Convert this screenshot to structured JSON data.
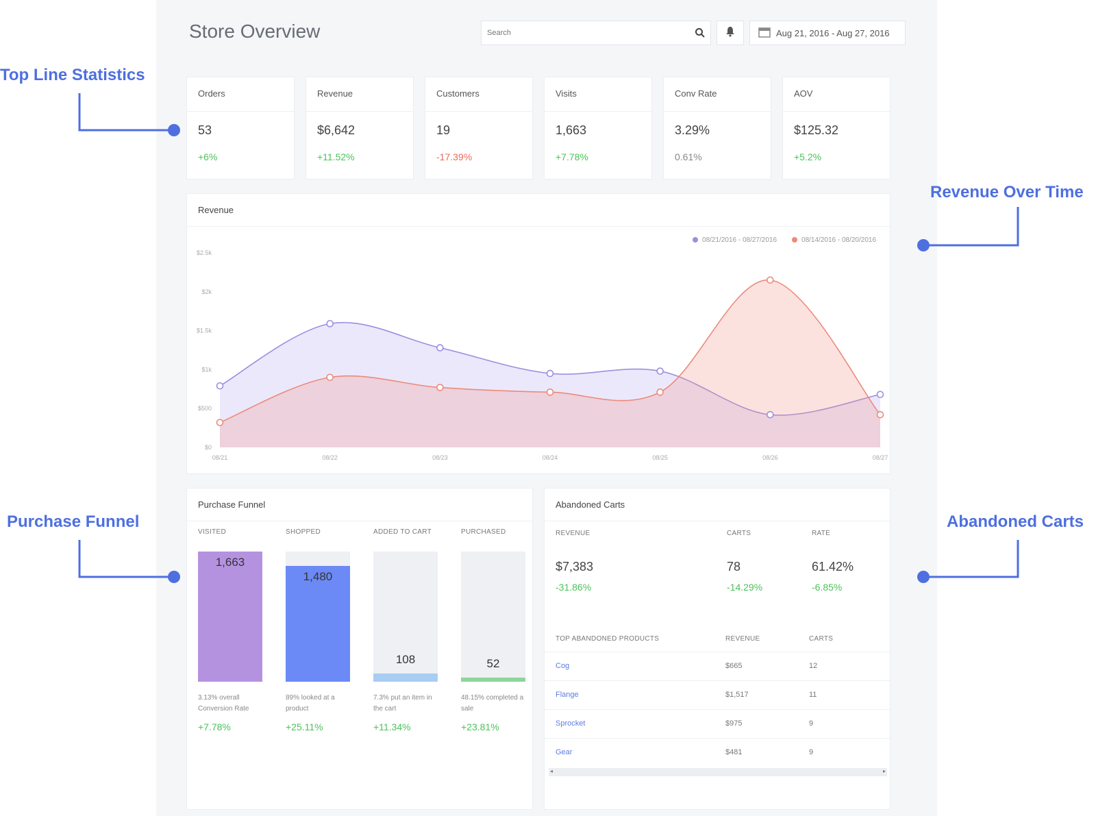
{
  "header": {
    "title": "Store Overview",
    "search_placeholder": "Search",
    "date_range": "Aug 21, 2016 - Aug 27, 2016"
  },
  "stats": [
    {
      "label": "Orders",
      "value": "53",
      "change": "+6%",
      "trend": "pos"
    },
    {
      "label": "Revenue",
      "value": "$6,642",
      "change": "+11.52%",
      "trend": "pos"
    },
    {
      "label": "Customers",
      "value": "19",
      "change": "-17.39%",
      "trend": "neg"
    },
    {
      "label": "Visits",
      "value": "1,663",
      "change": "+7.78%",
      "trend": "pos"
    },
    {
      "label": "Conv Rate",
      "value": "3.29%",
      "change": "0.61%",
      "trend": "neu"
    },
    {
      "label": "AOV",
      "value": "$125.32",
      "change": "+5.2%",
      "trend": "pos"
    }
  ],
  "revenue_panel": {
    "title": "Revenue",
    "legend": [
      "08/21/2016 - 08/27/2016",
      "08/14/2016 - 08/20/2016"
    ]
  },
  "chart_data": {
    "type": "area",
    "title": "Revenue",
    "x": [
      "08/21",
      "08/22",
      "08/23",
      "08/24",
      "08/25",
      "08/26",
      "08/27"
    ],
    "y_ticks": [
      "$0",
      "$500",
      "$1k",
      "$1.5k",
      "$2k",
      "$2.5k"
    ],
    "ylim": [
      0,
      2500
    ],
    "series": [
      {
        "name": "08/21/2016 - 08/27/2016",
        "color": "#9b8fe0",
        "values": [
          790,
          1590,
          1280,
          950,
          980,
          420,
          680
        ]
      },
      {
        "name": "08/14/2016 - 08/20/2016",
        "color": "#ec8a7a",
        "values": [
          320,
          900,
          770,
          710,
          710,
          2150,
          420
        ]
      }
    ],
    "grid": false,
    "legend_position": "top-right"
  },
  "funnel": {
    "title": "Purchase Funnel",
    "stages": [
      {
        "header": "VISITED",
        "count": "1,663",
        "fill": 1.0,
        "color": "#b592e0",
        "desc": "3.13% overall Conversion Rate",
        "change": "+7.78%"
      },
      {
        "header": "SHOPPED",
        "count": "1,480",
        "fill": 0.89,
        "color": "#6c8af5",
        "desc": "89% looked at a product",
        "change": "+25.11%"
      },
      {
        "header": "ADDED TO CART",
        "count": "108",
        "fill": 0.065,
        "color": "#a9cdf2",
        "desc": "7.3% put an item in the cart",
        "change": "+11.34%"
      },
      {
        "header": "PURCHASED",
        "count": "52",
        "fill": 0.031,
        "color": "#8fd49a",
        "desc": "48.15% completed a sale",
        "change": "+23.81%"
      }
    ]
  },
  "abandoned": {
    "title": "Abandoned Carts",
    "headers": [
      "REVENUE",
      "CARTS",
      "RATE"
    ],
    "summary": [
      {
        "value": "$7,383",
        "change": "-31.86%"
      },
      {
        "value": "78",
        "change": "-14.29%"
      },
      {
        "value": "61.42%",
        "change": "-6.85%"
      }
    ],
    "table_headers": [
      "TOP ABANDONED PRODUCTS",
      "REVENUE",
      "CARTS"
    ],
    "rows": [
      {
        "product": "Cog",
        "revenue": "$665",
        "carts": "12"
      },
      {
        "product": "Flange",
        "revenue": "$1,517",
        "carts": "11"
      },
      {
        "product": "Sprocket",
        "revenue": "$975",
        "carts": "9"
      },
      {
        "product": "Gear",
        "revenue": "$481",
        "carts": "9"
      }
    ]
  },
  "annotations": {
    "top_line": "Top Line Statistics",
    "revenue_time": "Revenue Over Time",
    "funnel": "Purchase Funnel",
    "abandoned": "Abandoned Carts"
  },
  "colors": {
    "annotation": "#4e6fe0",
    "positive": "#4cc25a",
    "negative": "#ec6a5a"
  }
}
